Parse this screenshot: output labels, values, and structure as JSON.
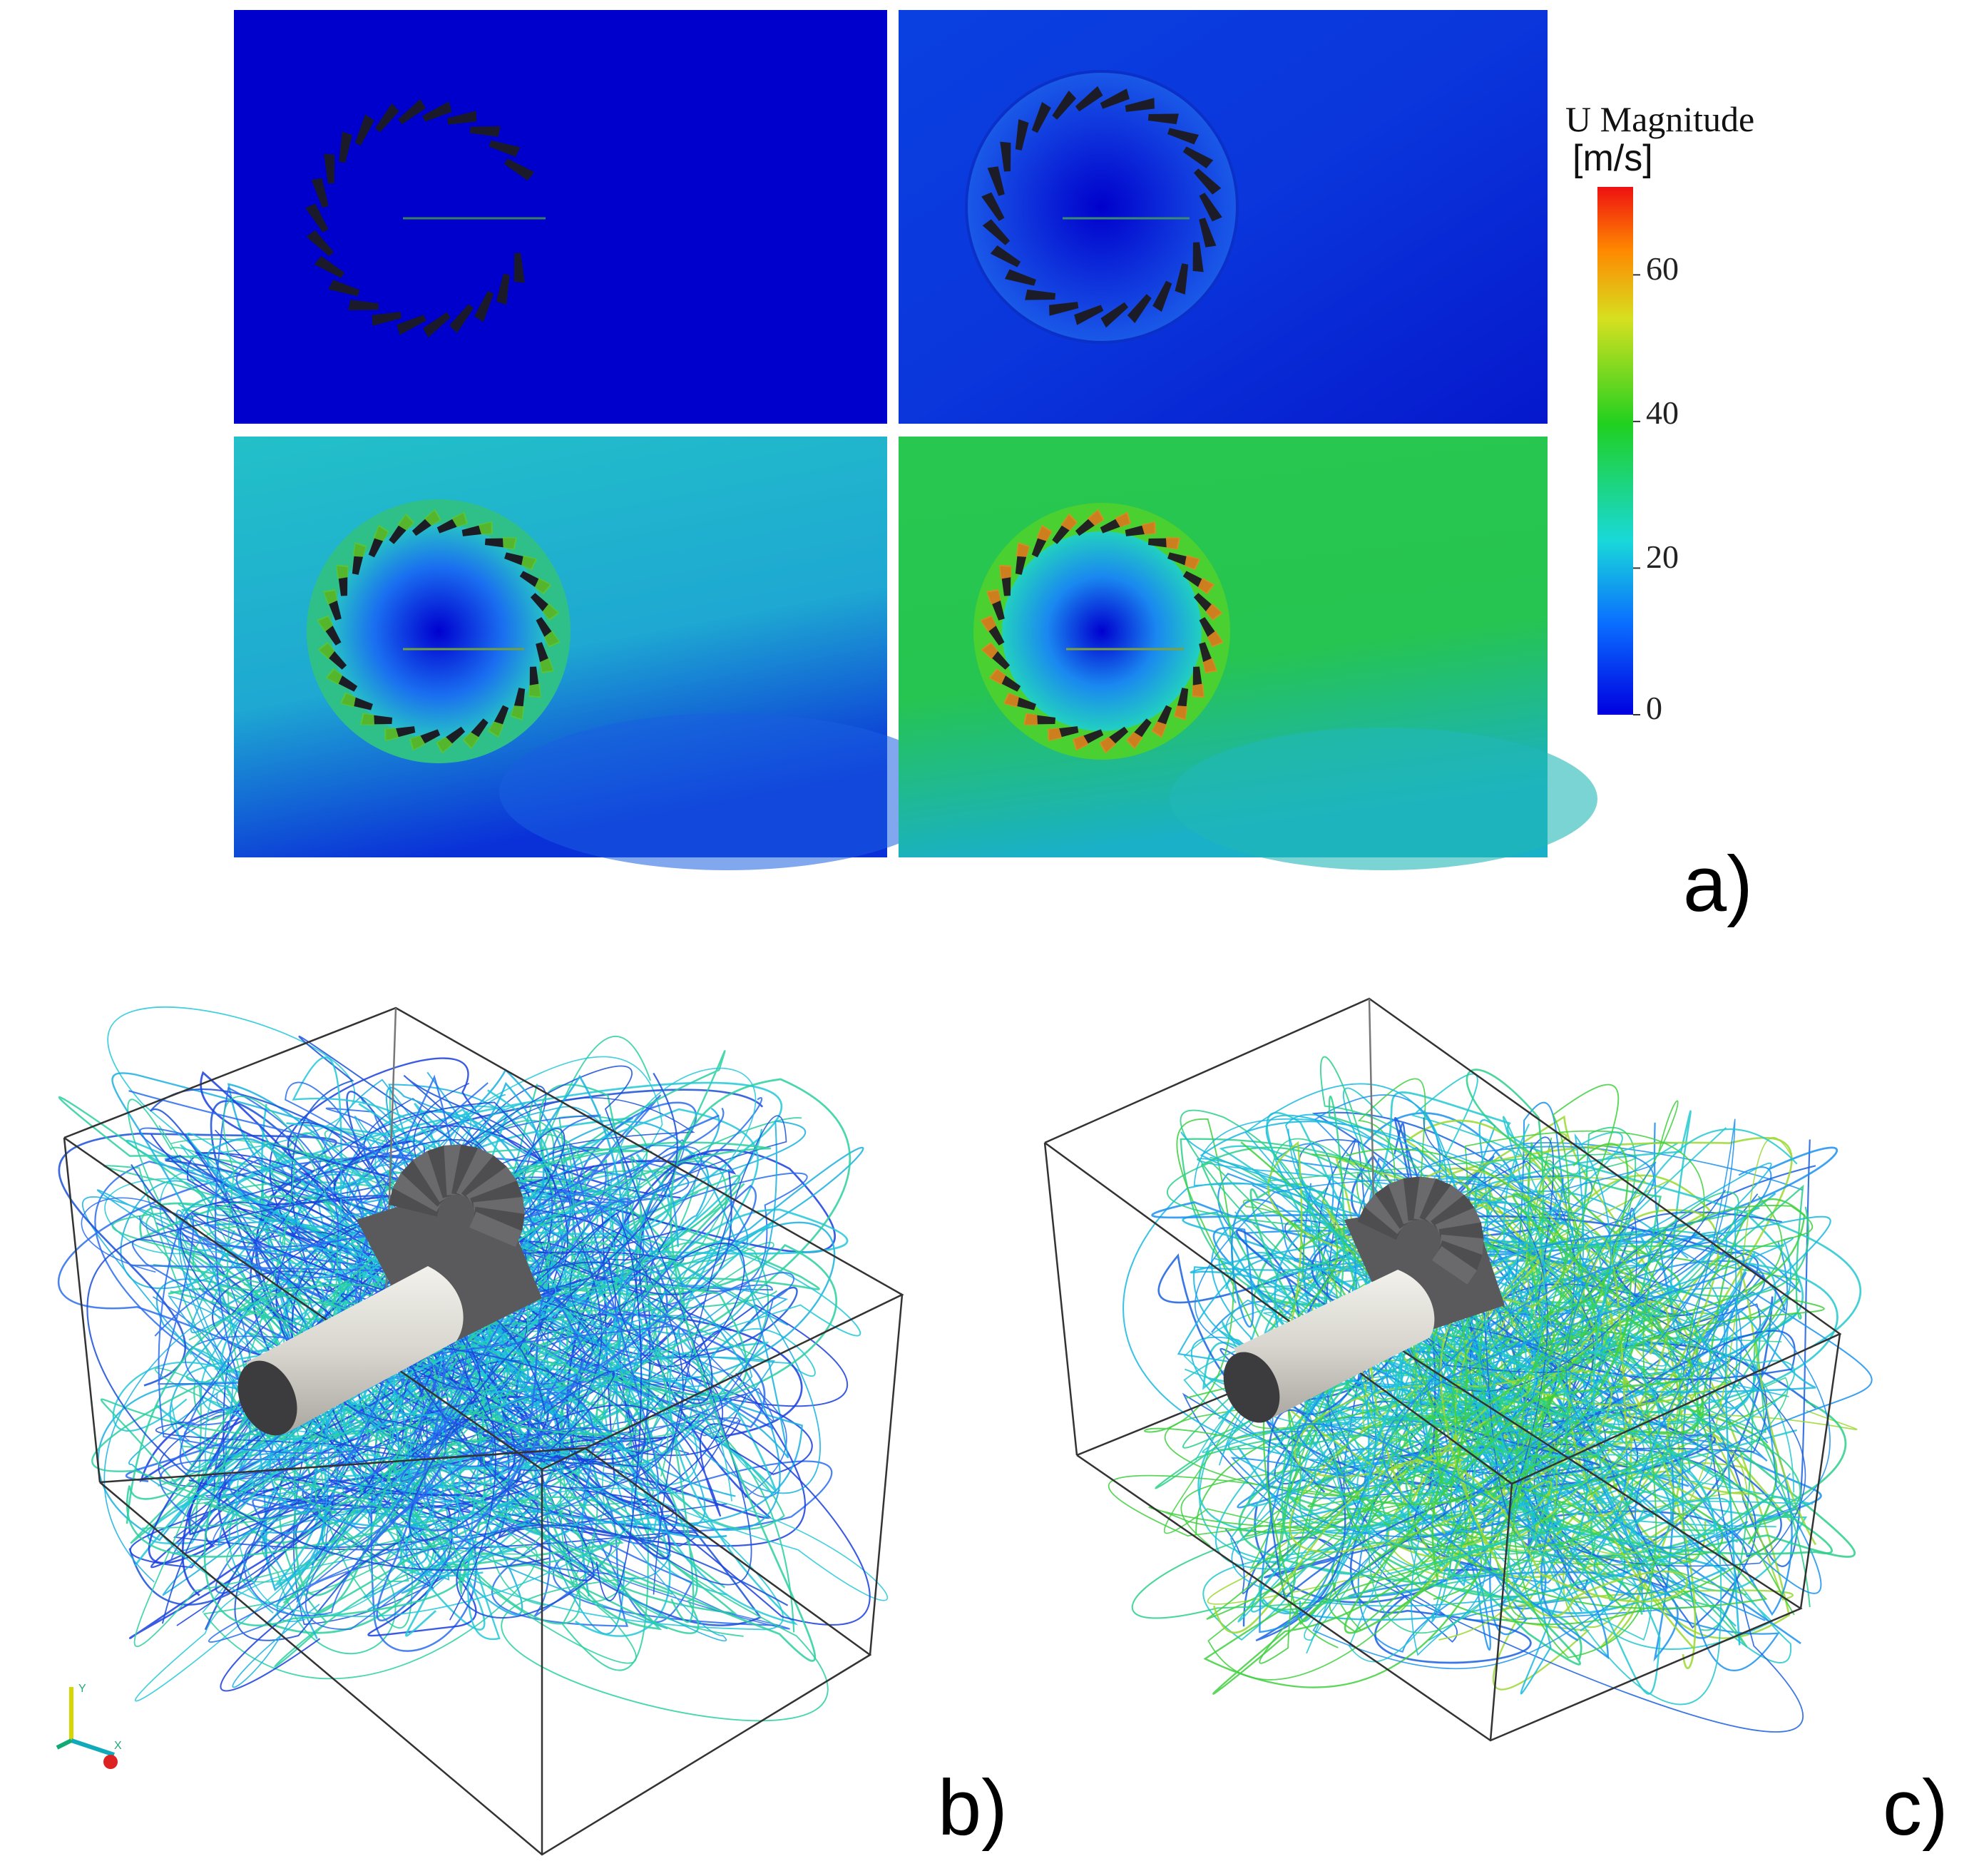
{
  "colorbar": {
    "title": "U Magnitude",
    "unit": "[m/s]",
    "ticks": [
      "0",
      "20",
      "40",
      "60"
    ],
    "min": 0,
    "max": 72,
    "colors": [
      "#0000e0",
      "#0a6cff",
      "#19d9d9",
      "#20d020",
      "#d6e020",
      "#ff8800",
      "#ee1111"
    ]
  },
  "panels": {
    "a": "a)",
    "b": "b)",
    "c": "c)"
  },
  "axes_triad": {
    "y": "Y",
    "x": "X"
  },
  "contour_frames": [
    {
      "position": "top-left",
      "background": "#0000cc",
      "ring": "#0000cc",
      "core": "#0000cc"
    },
    {
      "position": "top-right",
      "background": "#0826d6",
      "ring": "#1450e6",
      "core": "#0000cc"
    },
    {
      "position": "bottom-left",
      "background": "#22bfc8",
      "ring": "#22c08a",
      "core": "#0010d0"
    },
    {
      "position": "bottom-right",
      "background": "#28c84a",
      "ring": "#4ad020",
      "core": "#0000cc"
    }
  ]
}
